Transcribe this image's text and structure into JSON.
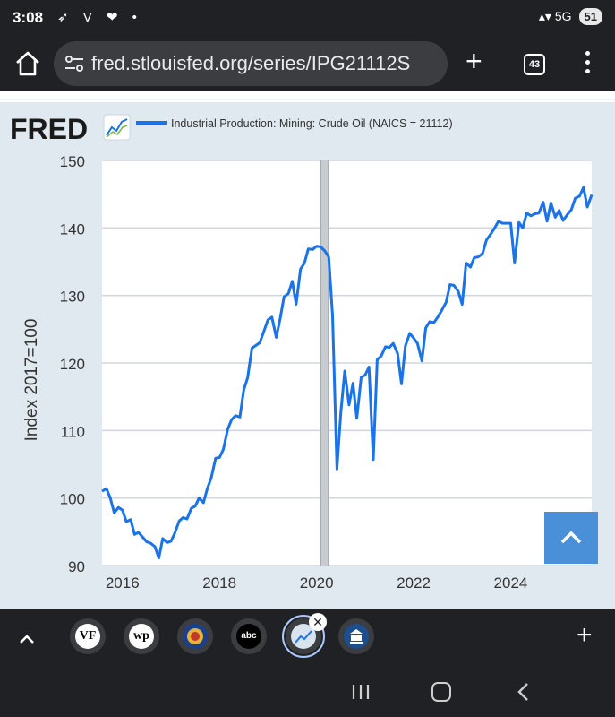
{
  "status_bar": {
    "time": "3:08",
    "notification_icons": "➶ V ❤ •",
    "network": "▴▾ 5G",
    "battery": "51"
  },
  "browser": {
    "url": "fred.stlouisfed.org/series/IPG21112S",
    "tab_count": "43"
  },
  "fred": {
    "logo_text": "FRED",
    "accent_color": "#1a73e8"
  },
  "chart_data": {
    "type": "line",
    "title": "",
    "legend_label": "Industrial Production: Mining: Crude Oil (NAICS = 21112)",
    "ylabel": "Index 2017=100",
    "xlabel": "",
    "x_ticks": [
      "2016",
      "2018",
      "2020",
      "2022",
      "2024"
    ],
    "y_ticks": [
      "90",
      "100",
      "110",
      "120",
      "130",
      "140",
      "150"
    ],
    "ylim": [
      90,
      150
    ],
    "xlim": [
      2015.58,
      2025.67
    ],
    "grid": true,
    "legend_position": "top-left",
    "series_color": "#1a73e8",
    "recession_band": [
      2020.08,
      2020.25
    ],
    "series": [
      {
        "name": "Industrial Production: Mining: Crude Oil (NAICS = 21112)",
        "points": [
          [
            2015.58,
            101.0
          ],
          [
            2015.67,
            101.4
          ],
          [
            2015.75,
            100.0
          ],
          [
            2015.83,
            97.8
          ],
          [
            2015.92,
            98.6
          ],
          [
            2016.0,
            98.2
          ],
          [
            2016.08,
            96.5
          ],
          [
            2016.17,
            96.8
          ],
          [
            2016.25,
            94.6
          ],
          [
            2016.33,
            94.9
          ],
          [
            2016.42,
            94.2
          ],
          [
            2016.5,
            93.5
          ],
          [
            2016.58,
            93.3
          ],
          [
            2016.67,
            92.8
          ],
          [
            2016.75,
            91.1
          ],
          [
            2016.83,
            94.0
          ],
          [
            2016.92,
            93.4
          ],
          [
            2017.0,
            93.6
          ],
          [
            2017.08,
            94.8
          ],
          [
            2017.17,
            96.6
          ],
          [
            2017.25,
            97.1
          ],
          [
            2017.33,
            96.9
          ],
          [
            2017.42,
            98.5
          ],
          [
            2017.5,
            98.8
          ],
          [
            2017.58,
            100.0
          ],
          [
            2017.67,
            99.3
          ],
          [
            2017.75,
            101.4
          ],
          [
            2017.83,
            103.0
          ],
          [
            2017.92,
            105.9
          ],
          [
            2018.0,
            106.0
          ],
          [
            2018.08,
            107.2
          ],
          [
            2018.17,
            110.2
          ],
          [
            2018.25,
            111.6
          ],
          [
            2018.33,
            112.2
          ],
          [
            2018.42,
            112.0
          ],
          [
            2018.5,
            116.0
          ],
          [
            2018.58,
            117.8
          ],
          [
            2018.67,
            122.2
          ],
          [
            2018.75,
            122.6
          ],
          [
            2018.83,
            123.0
          ],
          [
            2018.92,
            124.8
          ],
          [
            2019.0,
            126.4
          ],
          [
            2019.08,
            126.8
          ],
          [
            2019.17,
            123.8
          ],
          [
            2019.25,
            126.6
          ],
          [
            2019.33,
            129.8
          ],
          [
            2019.42,
            130.3
          ],
          [
            2019.5,
            132.1
          ],
          [
            2019.58,
            128.7
          ],
          [
            2019.67,
            133.9
          ],
          [
            2019.75,
            134.8
          ],
          [
            2019.83,
            136.9
          ],
          [
            2019.92,
            136.8
          ],
          [
            2020.0,
            137.3
          ],
          [
            2020.08,
            137.2
          ],
          [
            2020.17,
            136.6
          ],
          [
            2020.25,
            135.7
          ],
          [
            2020.33,
            127.0
          ],
          [
            2020.42,
            104.3
          ],
          [
            2020.5,
            112.6
          ],
          [
            2020.58,
            118.8
          ],
          [
            2020.67,
            113.8
          ],
          [
            2020.75,
            117.0
          ],
          [
            2020.83,
            111.8
          ],
          [
            2020.92,
            117.9
          ],
          [
            2021.0,
            118.2
          ],
          [
            2021.08,
            119.4
          ],
          [
            2021.17,
            105.7
          ],
          [
            2021.25,
            120.5
          ],
          [
            2021.33,
            121.0
          ],
          [
            2021.42,
            122.4
          ],
          [
            2021.5,
            122.3
          ],
          [
            2021.58,
            122.9
          ],
          [
            2021.67,
            121.4
          ],
          [
            2021.75,
            116.9
          ],
          [
            2021.83,
            122.5
          ],
          [
            2021.92,
            124.4
          ],
          [
            2022.0,
            123.7
          ],
          [
            2022.08,
            122.9
          ],
          [
            2022.17,
            120.3
          ],
          [
            2022.25,
            125.2
          ],
          [
            2022.33,
            126.1
          ],
          [
            2022.42,
            126.0
          ],
          [
            2022.5,
            126.8
          ],
          [
            2022.58,
            127.8
          ],
          [
            2022.67,
            129.0
          ],
          [
            2022.75,
            131.6
          ],
          [
            2022.83,
            131.5
          ],
          [
            2022.92,
            130.6
          ],
          [
            2023.0,
            128.7
          ],
          [
            2023.08,
            134.8
          ],
          [
            2023.17,
            134.2
          ],
          [
            2023.25,
            135.6
          ],
          [
            2023.33,
            135.7
          ],
          [
            2023.42,
            136.2
          ],
          [
            2023.5,
            138.2
          ],
          [
            2023.58,
            139.0
          ],
          [
            2023.67,
            140.0
          ],
          [
            2023.75,
            141.0
          ],
          [
            2023.83,
            140.7
          ],
          [
            2023.92,
            140.7
          ],
          [
            2024.0,
            140.7
          ],
          [
            2024.08,
            134.8
          ],
          [
            2024.17,
            140.8
          ],
          [
            2024.25,
            140.0
          ],
          [
            2024.33,
            142.2
          ],
          [
            2024.42,
            141.8
          ],
          [
            2024.5,
            142.1
          ],
          [
            2024.58,
            142.2
          ],
          [
            2024.67,
            143.8
          ],
          [
            2024.75,
            141.0
          ],
          [
            2024.83,
            143.7
          ],
          [
            2024.92,
            141.6
          ],
          [
            2025.0,
            142.6
          ],
          [
            2025.08,
            141.1
          ],
          [
            2025.17,
            142.0
          ],
          [
            2025.25,
            142.7
          ],
          [
            2025.33,
            144.4
          ],
          [
            2025.42,
            144.7
          ],
          [
            2025.5,
            146.0
          ],
          [
            2025.58,
            143.1
          ],
          [
            2025.67,
            144.9
          ]
        ]
      }
    ]
  },
  "bottom_tabs": {
    "items": [
      {
        "label": "VF"
      },
      {
        "label": "wp"
      },
      {
        "label": ""
      },
      {
        "label": "abc"
      },
      {
        "label": ""
      },
      {
        "label": ""
      }
    ],
    "close_label": "✕",
    "new_tab_label": "+"
  }
}
